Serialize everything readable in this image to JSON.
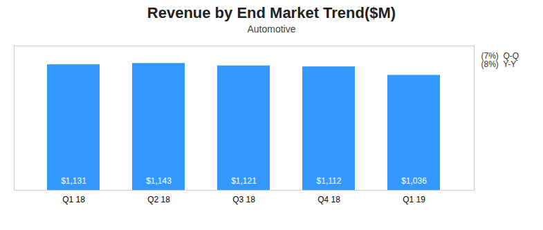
{
  "chart_data": {
    "type": "bar",
    "title": "Revenue by End Market Trend($M)",
    "subtitle": "Automotive",
    "categories": [
      "Q1 18",
      "Q2 18",
      "Q3 18",
      "Q4 18",
      "Q1 19"
    ],
    "values": [
      1131,
      1143,
      1121,
      1112,
      1036
    ],
    "value_labels": [
      "$1,131",
      "$1,143",
      "$1,121",
      "$1,112",
      "$1,036"
    ],
    "data_labels": true,
    "color": "#3399FF",
    "ylim": [
      0,
      1300
    ],
    "tick_labels": "x",
    "annotations": [
      "(7%)  Q-Q",
      "(8%)  Y-Y"
    ]
  }
}
